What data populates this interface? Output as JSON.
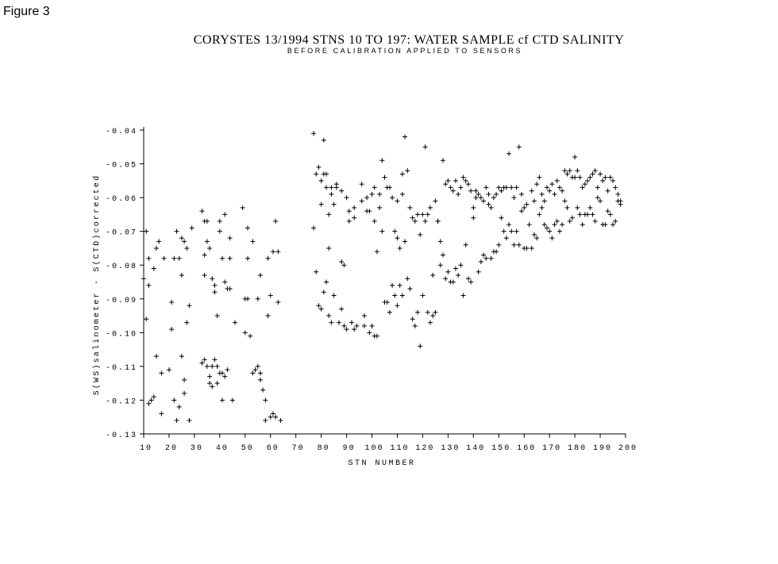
{
  "figure_label": "Figure 3",
  "chart_data": {
    "type": "scatter",
    "title": "CORYSTES 13/1994  STNS 10 TO  197: WATER SAMPLE cf CTD SALINITY",
    "subtitle": "BEFORE CALIBRATION APPLIED TO SENSORS",
    "xlabel": "STN NUMBER",
    "ylabel": "S(WS)salinometer - S(CTD)corrected",
    "xlim": [
      10,
      200
    ],
    "ylim": [
      -0.13,
      -0.04
    ],
    "xticks": [
      10,
      20,
      30,
      40,
      50,
      60,
      70,
      80,
      90,
      100,
      110,
      120,
      130,
      140,
      150,
      160,
      170,
      180,
      190,
      200
    ],
    "xtick_labels": [
      "10",
      "20",
      "30",
      "40",
      "50",
      "60",
      "70",
      "80",
      "90",
      "100",
      "110",
      "120",
      "130",
      "140",
      "150",
      "160",
      "170",
      "180",
      "190",
      "200"
    ],
    "yticks": [
      -0.04,
      -0.05,
      -0.06,
      -0.07,
      -0.08,
      -0.09,
      -0.1,
      -0.11,
      -0.12,
      -0.13
    ],
    "ytick_labels": [
      "-0.04",
      "-0.05",
      "-0.06",
      "-0.07",
      "-0.08",
      "-0.09",
      "-0.10",
      "-0.11",
      "-0.12",
      "-0.13"
    ],
    "marker": "+",
    "grid": false,
    "points": [
      [
        10,
        -0.084
      ],
      [
        11,
        -0.07
      ],
      [
        11,
        -0.096
      ],
      [
        12,
        -0.078
      ],
      [
        12,
        -0.086
      ],
      [
        12,
        -0.121
      ],
      [
        13,
        -0.12
      ],
      [
        14,
        -0.119
      ],
      [
        14,
        -0.081
      ],
      [
        15,
        -0.075
      ],
      [
        15,
        -0.107
      ],
      [
        16,
        -0.073
      ],
      [
        17,
        -0.112
      ],
      [
        17,
        -0.124
      ],
      [
        18,
        -0.078
      ],
      [
        20,
        -0.111
      ],
      [
        21,
        -0.091
      ],
      [
        21,
        -0.099
      ],
      [
        22,
        -0.078
      ],
      [
        22,
        -0.12
      ],
      [
        23,
        -0.07
      ],
      [
        23,
        -0.126
      ],
      [
        24,
        -0.078
      ],
      [
        24,
        -0.122
      ],
      [
        25,
        -0.072
      ],
      [
        25,
        -0.083
      ],
      [
        25,
        -0.107
      ],
      [
        26,
        -0.073
      ],
      [
        26,
        -0.114
      ],
      [
        26,
        -0.118
      ],
      [
        27,
        -0.075
      ],
      [
        27,
        -0.097
      ],
      [
        28,
        -0.092
      ],
      [
        28,
        -0.126
      ],
      [
        29,
        -0.069
      ],
      [
        33,
        -0.064
      ],
      [
        33,
        -0.109
      ],
      [
        34,
        -0.067
      ],
      [
        34,
        -0.077
      ],
      [
        34,
        -0.083
      ],
      [
        34,
        -0.108
      ],
      [
        35,
        -0.067
      ],
      [
        35,
        -0.073
      ],
      [
        35,
        -0.11
      ],
      [
        36,
        -0.075
      ],
      [
        36,
        -0.115
      ],
      [
        36,
        -0.113
      ],
      [
        37,
        -0.084
      ],
      [
        37,
        -0.11
      ],
      [
        37,
        -0.116
      ],
      [
        38,
        -0.086
      ],
      [
        38,
        -0.088
      ],
      [
        38,
        -0.108
      ],
      [
        39,
        -0.095
      ],
      [
        39,
        -0.11
      ],
      [
        39,
        -0.115
      ],
      [
        40,
        -0.112
      ],
      [
        40,
        -0.07
      ],
      [
        40,
        -0.067
      ],
      [
        41,
        -0.078
      ],
      [
        41,
        -0.112
      ],
      [
        41,
        -0.12
      ],
      [
        42,
        -0.065
      ],
      [
        42,
        -0.085
      ],
      [
        42,
        -0.113
      ],
      [
        43,
        -0.087
      ],
      [
        43,
        -0.111
      ],
      [
        44,
        -0.078
      ],
      [
        44,
        -0.072
      ],
      [
        44,
        -0.087
      ],
      [
        45,
        -0.12
      ],
      [
        46,
        -0.097
      ],
      [
        49,
        -0.063
      ],
      [
        50,
        -0.09
      ],
      [
        50,
        -0.1
      ],
      [
        51,
        -0.069
      ],
      [
        51,
        -0.078
      ],
      [
        51,
        -0.09
      ],
      [
        52,
        -0.101
      ],
      [
        53,
        -0.073
      ],
      [
        53,
        -0.112
      ],
      [
        54,
        -0.111
      ],
      [
        55,
        -0.09
      ],
      [
        55,
        -0.11
      ],
      [
        56,
        -0.112
      ],
      [
        56,
        -0.083
      ],
      [
        56,
        -0.114
      ],
      [
        57,
        -0.117
      ],
      [
        58,
        -0.126
      ],
      [
        58,
        -0.12
      ],
      [
        59,
        -0.078
      ],
      [
        59,
        -0.095
      ],
      [
        60,
        -0.089
      ],
      [
        60,
        -0.125
      ],
      [
        61,
        -0.076
      ],
      [
        61,
        -0.124
      ],
      [
        62,
        -0.125
      ],
      [
        62,
        -0.067
      ],
      [
        63,
        -0.091
      ],
      [
        63,
        -0.076
      ],
      [
        64,
        -0.126
      ],
      [
        77,
        -0.041
      ],
      [
        77,
        -0.069
      ],
      [
        78,
        -0.053
      ],
      [
        78,
        -0.082
      ],
      [
        79,
        -0.051
      ],
      [
        79,
        -0.092
      ],
      [
        80,
        -0.055
      ],
      [
        80,
        -0.062
      ],
      [
        80,
        -0.093
      ],
      [
        81,
        -0.053
      ],
      [
        81,
        -0.043
      ],
      [
        81,
        -0.088
      ],
      [
        82,
        -0.057
      ],
      [
        82,
        -0.053
      ],
      [
        82,
        -0.085
      ],
      [
        83,
        -0.075
      ],
      [
        83,
        -0.065
      ],
      [
        83,
        -0.095
      ],
      [
        84,
        -0.059
      ],
      [
        84,
        -0.057
      ],
      [
        84,
        -0.097
      ],
      [
        85,
        -0.062
      ],
      [
        85,
        -0.089
      ],
      [
        86,
        -0.056
      ],
      [
        86,
        -0.057
      ],
      [
        87,
        -0.097
      ],
      [
        88,
        -0.058
      ],
      [
        88,
        -0.079
      ],
      [
        88,
        -0.093
      ],
      [
        89,
        -0.098
      ],
      [
        89,
        -0.08
      ],
      [
        90,
        -0.06
      ],
      [
        90,
        -0.099
      ],
      [
        91,
        -0.064
      ],
      [
        91,
        -0.067
      ],
      [
        92,
        -0.097
      ],
      [
        93,
        -0.063
      ],
      [
        93,
        -0.066
      ],
      [
        93,
        -0.099
      ],
      [
        94,
        -0.098
      ],
      [
        96,
        -0.061
      ],
      [
        96,
        -0.056
      ],
      [
        97,
        -0.098
      ],
      [
        97,
        -0.095
      ],
      [
        98,
        -0.064
      ],
      [
        98,
        -0.06
      ],
      [
        99,
        -0.1
      ],
      [
        99,
        -0.064
      ],
      [
        100,
        -0.059
      ],
      [
        100,
        -0.098
      ],
      [
        101,
        -0.067
      ],
      [
        101,
        -0.057
      ],
      [
        101,
        -0.101
      ],
      [
        102,
        -0.076
      ],
      [
        102,
        -0.101
      ],
      [
        103,
        -0.063
      ],
      [
        103,
        -0.059
      ],
      [
        104,
        -0.049
      ],
      [
        104,
        -0.07
      ],
      [
        105,
        -0.054
      ],
      [
        105,
        -0.091
      ],
      [
        106,
        -0.057
      ],
      [
        106,
        -0.091
      ],
      [
        107,
        -0.057
      ],
      [
        107,
        -0.094
      ],
      [
        108,
        -0.086
      ],
      [
        108,
        -0.06
      ],
      [
        109,
        -0.07
      ],
      [
        109,
        -0.089
      ],
      [
        110,
        -0.061
      ],
      [
        110,
        -0.072
      ],
      [
        110,
        -0.092
      ],
      [
        111,
        -0.075
      ],
      [
        111,
        -0.086
      ],
      [
        112,
        -0.053
      ],
      [
        112,
        -0.059
      ],
      [
        112,
        -0.089
      ],
      [
        113,
        -0.042
      ],
      [
        113,
        -0.073
      ],
      [
        114,
        -0.052
      ],
      [
        114,
        -0.084
      ],
      [
        115,
        -0.063
      ],
      [
        115,
        -0.087
      ],
      [
        116,
        -0.066
      ],
      [
        116,
        -0.096
      ],
      [
        117,
        -0.067
      ],
      [
        117,
        -0.098
      ],
      [
        118,
        -0.065
      ],
      [
        118,
        -0.094
      ],
      [
        119,
        -0.104
      ],
      [
        119,
        -0.071
      ],
      [
        120,
        -0.065
      ],
      [
        120,
        -0.089
      ],
      [
        121,
        -0.045
      ],
      [
        121,
        -0.067
      ],
      [
        122,
        -0.065
      ],
      [
        122,
        -0.094
      ],
      [
        123,
        -0.063
      ],
      [
        123,
        -0.097
      ],
      [
        124,
        -0.083
      ],
      [
        124,
        -0.095
      ],
      [
        125,
        -0.061
      ],
      [
        125,
        -0.094
      ],
      [
        126,
        -0.067
      ],
      [
        126,
        -0.067
      ],
      [
        127,
        -0.073
      ],
      [
        127,
        -0.08
      ],
      [
        128,
        -0.049
      ],
      [
        128,
        -0.077
      ],
      [
        129,
        -0.056
      ],
      [
        129,
        -0.084
      ],
      [
        130,
        -0.055
      ],
      [
        130,
        -0.082
      ],
      [
        131,
        -0.057
      ],
      [
        131,
        -0.085
      ],
      [
        132,
        -0.058
      ],
      [
        132,
        -0.085
      ],
      [
        133,
        -0.055
      ],
      [
        133,
        -0.081
      ],
      [
        134,
        -0.059
      ],
      [
        134,
        -0.083
      ],
      [
        135,
        -0.057
      ],
      [
        135,
        -0.08
      ],
      [
        136,
        -0.054
      ],
      [
        136,
        -0.089
      ],
      [
        137,
        -0.055
      ],
      [
        137,
        -0.074
      ],
      [
        138,
        -0.056
      ],
      [
        138,
        -0.084
      ],
      [
        139,
        -0.058
      ],
      [
        139,
        -0.085
      ],
      [
        140,
        -0.063
      ],
      [
        140,
        -0.066
      ],
      [
        141,
        -0.058
      ],
      [
        141,
        -0.06
      ],
      [
        142,
        -0.059
      ],
      [
        142,
        -0.082
      ],
      [
        143,
        -0.06
      ],
      [
        143,
        -0.079
      ],
      [
        144,
        -0.061
      ],
      [
        144,
        -0.077
      ],
      [
        145,
        -0.057
      ],
      [
        145,
        -0.078
      ],
      [
        146,
        -0.059
      ],
      [
        146,
        -0.062
      ],
      [
        147,
        -0.063
      ],
      [
        147,
        -0.078
      ],
      [
        148,
        -0.06
      ],
      [
        148,
        -0.076
      ],
      [
        149,
        -0.059
      ],
      [
        149,
        -0.076
      ],
      [
        150,
        -0.057
      ],
      [
        150,
        -0.074
      ],
      [
        151,
        -0.058
      ],
      [
        151,
        -0.066
      ],
      [
        152,
        -0.057
      ],
      [
        152,
        -0.07
      ],
      [
        153,
        -0.057
      ],
      [
        153,
        -0.072
      ],
      [
        154,
        -0.047
      ],
      [
        154,
        -0.068
      ],
      [
        155,
        -0.057
      ],
      [
        155,
        -0.07
      ],
      [
        156,
        -0.06
      ],
      [
        156,
        -0.074
      ],
      [
        157,
        -0.057
      ],
      [
        157,
        -0.07
      ],
      [
        158,
        -0.045
      ],
      [
        158,
        -0.074
      ],
      [
        159,
        -0.059
      ],
      [
        159,
        -0.064
      ],
      [
        160,
        -0.063
      ],
      [
        160,
        -0.075
      ],
      [
        161,
        -0.062
      ],
      [
        161,
        -0.075
      ],
      [
        162,
        -0.068
      ],
      [
        163,
        -0.058
      ],
      [
        163,
        -0.075
      ],
      [
        164,
        -0.061
      ],
      [
        164,
        -0.071
      ],
      [
        165,
        -0.056
      ],
      [
        165,
        -0.072
      ],
      [
        166,
        -0.054
      ],
      [
        166,
        -0.065
      ],
      [
        167,
        -0.059
      ],
      [
        167,
        -0.063
      ],
      [
        168,
        -0.061
      ],
      [
        168,
        -0.068
      ],
      [
        169,
        -0.057
      ],
      [
        169,
        -0.069
      ],
      [
        170,
        -0.058
      ],
      [
        170,
        -0.07
      ],
      [
        171,
        -0.056
      ],
      [
        171,
        -0.072
      ],
      [
        172,
        -0.059
      ],
      [
        172,
        -0.068
      ],
      [
        173,
        -0.055
      ],
      [
        173,
        -0.067
      ],
      [
        174,
        -0.057
      ],
      [
        174,
        -0.07
      ],
      [
        175,
        -0.058
      ],
      [
        175,
        -0.068
      ],
      [
        176,
        -0.052
      ],
      [
        176,
        -0.061
      ],
      [
        177,
        -0.053
      ],
      [
        177,
        -0.063
      ],
      [
        178,
        -0.052
      ],
      [
        178,
        -0.067
      ],
      [
        179,
        -0.054
      ],
      [
        179,
        -0.066
      ],
      [
        180,
        -0.048
      ],
      [
        180,
        -0.054
      ],
      [
        181,
        -0.052
      ],
      [
        181,
        -0.063
      ],
      [
        182,
        -0.054
      ],
      [
        182,
        -0.065
      ],
      [
        183,
        -0.057
      ],
      [
        183,
        -0.068
      ],
      [
        184,
        -0.056
      ],
      [
        184,
        -0.065
      ],
      [
        185,
        -0.055
      ],
      [
        185,
        -0.065
      ],
      [
        186,
        -0.054
      ],
      [
        186,
        -0.063
      ],
      [
        187,
        -0.053
      ],
      [
        187,
        -0.065
      ],
      [
        188,
        -0.052
      ],
      [
        188,
        -0.067
      ],
      [
        189,
        -0.057
      ],
      [
        189,
        -0.06
      ],
      [
        190,
        -0.053
      ],
      [
        190,
        -0.061
      ],
      [
        191,
        -0.055
      ],
      [
        191,
        -0.068
      ],
      [
        192,
        -0.054
      ],
      [
        192,
        -0.068
      ],
      [
        193,
        -0.058
      ],
      [
        193,
        -0.064
      ],
      [
        194,
        -0.054
      ],
      [
        194,
        -0.065
      ],
      [
        195,
        -0.055
      ],
      [
        195,
        -0.068
      ],
      [
        196,
        -0.057
      ],
      [
        196,
        -0.067
      ],
      [
        197,
        -0.059
      ],
      [
        197,
        -0.061
      ],
      [
        198,
        -0.061
      ],
      [
        198,
        -0.062
      ]
    ]
  }
}
